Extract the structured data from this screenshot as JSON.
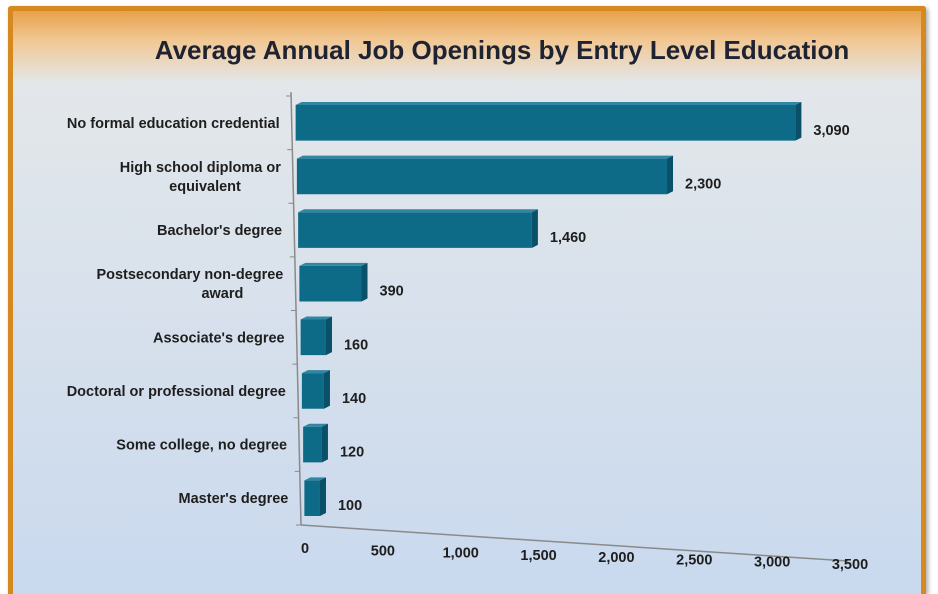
{
  "chart_data": {
    "type": "bar",
    "orientation": "horizontal",
    "title": "Average Annual Job Openings by Entry Level Education",
    "categories": [
      "No formal education credential",
      "High school diploma or equivalent",
      "Bachelor's degree",
      "Postsecondary non-degree award",
      "Associate's degree",
      "Doctoral or professional degree",
      "Some college, no degree",
      "Master's degree"
    ],
    "category_lines": [
      [
        "No formal education credential"
      ],
      [
        "High school diploma or",
        "equivalent"
      ],
      [
        "Bachelor's degree"
      ],
      [
        "Postsecondary non-degree",
        "award"
      ],
      [
        "Associate's degree"
      ],
      [
        "Doctoral or professional degree"
      ],
      [
        "Some college, no degree"
      ],
      [
        "Master's degree"
      ]
    ],
    "values": [
      3090,
      2300,
      1460,
      390,
      160,
      140,
      120,
      100
    ],
    "value_labels": [
      "3,090",
      "2,300",
      "1,460",
      "390",
      "160",
      "140",
      "120",
      "100"
    ],
    "xlim": [
      0,
      3500
    ],
    "x_ticks": [
      "0",
      "500",
      "1,000",
      "1,500",
      "2,000",
      "2,500",
      "3,000",
      "3,500"
    ],
    "xlabel": "",
    "ylabel": "",
    "grid": false,
    "legend": "none",
    "colors": {
      "bar_front": "#0e6b87",
      "bar_side": "#0a5068",
      "bar_top": "#2f87a1",
      "axis": "#8a8a8a",
      "frame": "#d6891e"
    }
  }
}
